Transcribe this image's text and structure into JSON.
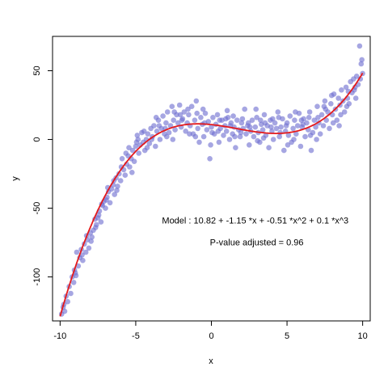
{
  "chart_data": {
    "type": "scatter",
    "title": "",
    "xlabel": "x",
    "ylabel": "y",
    "xlim": [
      -10.5,
      10.5
    ],
    "ylim": [
      -132,
      75
    ],
    "x_ticks": [
      {
        "value": -10,
        "label": "-10"
      },
      {
        "value": -5,
        "label": "-5"
      },
      {
        "value": 0,
        "label": "0"
      },
      {
        "value": 5,
        "label": "5"
      },
      {
        "value": 10,
        "label": "10"
      }
    ],
    "y_ticks": [
      {
        "value": -100,
        "label": "-100"
      },
      {
        "value": -50,
        "label": "-50"
      },
      {
        "value": 0,
        "label": "0"
      },
      {
        "value": 50,
        "label": "50"
      }
    ],
    "grid": false,
    "legend": "none",
    "point_color": "#7070d0",
    "curve_color": "#e41a1c",
    "fit": {
      "coefficients": [
        10.82,
        -1.15,
        -0.51,
        0.1
      ],
      "x_range": [
        -10,
        10
      ]
    },
    "annotations": [
      {
        "text": "Model :  10.82  +  -1.15 *x + -0.51 *x^2 + 0.1 *x^3",
        "x": 2.9,
        "y": -61
      },
      {
        "text": "P-value adjusted =  0.96",
        "x": 3.0,
        "y": -77
      }
    ],
    "points": [
      [
        -9.9,
        -127
      ],
      [
        -9.8,
        -122
      ],
      [
        -9.7,
        -125
      ],
      [
        -9.6,
        -114
      ],
      [
        -9.5,
        -118
      ],
      [
        -9.4,
        -107
      ],
      [
        -9.3,
        -112
      ],
      [
        -9.2,
        -100
      ],
      [
        -9.1,
        -104
      ],
      [
        -9.0,
        -97
      ],
      [
        -8.9,
        -82
      ],
      [
        -8.8,
        -92
      ],
      [
        -8.7,
        -86
      ],
      [
        -8.6,
        -80
      ],
      [
        -8.5,
        -88
      ],
      [
        -8.4,
        -76
      ],
      [
        -8.3,
        -82
      ],
      [
        -8.2,
        -73
      ],
      [
        -8.1,
        -79
      ],
      [
        -8.0,
        -68
      ],
      [
        -7.9,
        -71
      ],
      [
        -7.8,
        -66
      ],
      [
        -7.7,
        -58
      ],
      [
        -7.6,
        -62
      ],
      [
        -7.5,
        -57
      ],
      [
        -7.4,
        -52
      ],
      [
        -7.3,
        -60
      ],
      [
        -7.2,
        -48
      ],
      [
        -7.1,
        -45
      ],
      [
        -7.0,
        -50
      ],
      [
        -6.9,
        -42
      ],
      [
        -6.8,
        -38
      ],
      [
        -6.7,
        -46
      ],
      [
        -6.6,
        -36
      ],
      [
        -6.5,
        -33
      ],
      [
        -6.4,
        -40
      ],
      [
        -6.3,
        -28
      ],
      [
        -6.2,
        -34
      ],
      [
        -6.1,
        -25
      ],
      [
        -6.0,
        -30
      ],
      [
        -5.9,
        -14
      ],
      [
        -5.8,
        -22
      ],
      [
        -5.7,
        -26
      ],
      [
        -5.6,
        -18
      ],
      [
        -5.5,
        -12
      ],
      [
        -5.4,
        -20
      ],
      [
        -5.3,
        -14
      ],
      [
        -5.2,
        -8
      ],
      [
        -5.1,
        -16
      ],
      [
        -5.0,
        -5
      ],
      [
        -4.9,
        3
      ],
      [
        -4.8,
        -10
      ],
      [
        -4.7,
        -4
      ],
      [
        -4.6,
        5
      ],
      [
        -4.5,
        -2
      ],
      [
        -4.4,
        -8
      ],
      [
        -4.3,
        0
      ],
      [
        -4.2,
        4
      ],
      [
        -4.1,
        -3
      ],
      [
        -4.0,
        8
      ],
      [
        -3.9,
        2
      ],
      [
        -3.8,
        10
      ],
      [
        -3.7,
        -5
      ],
      [
        -3.6,
        6
      ],
      [
        -3.5,
        14
      ],
      [
        -3.4,
        0
      ],
      [
        -3.3,
        8
      ],
      [
        -3.2,
        17
      ],
      [
        -3.1,
        4
      ],
      [
        -3.0,
        12
      ],
      [
        -2.9,
        20
      ],
      [
        -2.8,
        5
      ],
      [
        -2.7,
        10
      ],
      [
        -2.6,
        24
      ],
      [
        -2.5,
        14
      ],
      [
        -2.4,
        7
      ],
      [
        -2.3,
        18
      ],
      [
        -2.2,
        12
      ],
      [
        -2.1,
        25
      ],
      [
        -2.0,
        9
      ],
      [
        -1.9,
        15
      ],
      [
        -1.8,
        20
      ],
      [
        -1.7,
        6
      ],
      [
        -1.6,
        12
      ],
      [
        -1.5,
        18
      ],
      [
        -1.4,
        10
      ],
      [
        -1.3,
        24
      ],
      [
        -1.2,
        4
      ],
      [
        -1.1,
        14
      ],
      [
        -1.0,
        28
      ],
      [
        -0.9,
        8
      ],
      [
        -0.8,
        -2
      ],
      [
        -0.7,
        16
      ],
      [
        -0.6,
        11
      ],
      [
        -0.5,
        2
      ],
      [
        -0.4,
        19
      ],
      [
        -0.3,
        7
      ],
      [
        -0.2,
        13
      ],
      [
        -0.1,
        -14
      ],
      [
        0.0,
        9
      ],
      [
        0.1,
        16
      ],
      [
        0.2,
        4
      ],
      [
        0.3,
        11
      ],
      [
        0.4,
        18
      ],
      [
        0.5,
        -2
      ],
      [
        0.6,
        8
      ],
      [
        0.7,
        14
      ],
      [
        0.8,
        3
      ],
      [
        0.9,
        10
      ],
      [
        1.0,
        6
      ],
      [
        1.1,
        16
      ],
      [
        1.2,
        0
      ],
      [
        1.3,
        12
      ],
      [
        1.4,
        4
      ],
      [
        1.5,
        9
      ],
      [
        1.6,
        -6
      ],
      [
        1.7,
        14
      ],
      [
        1.8,
        7
      ],
      [
        1.9,
        2
      ],
      [
        2.0,
        12
      ],
      [
        2.1,
        8
      ],
      [
        2.2,
        22
      ],
      [
        2.3,
        4
      ],
      [
        2.4,
        10
      ],
      [
        2.5,
        -4
      ],
      [
        2.6,
        6
      ],
      [
        2.7,
        14
      ],
      [
        2.8,
        2
      ],
      [
        2.9,
        9
      ],
      [
        3.0,
        16
      ],
      [
        3.1,
        5
      ],
      [
        3.2,
        -2
      ],
      [
        3.3,
        11
      ],
      [
        3.4,
        7
      ],
      [
        3.5,
        18
      ],
      [
        3.6,
        3
      ],
      [
        3.7,
        10
      ],
      [
        3.8,
        -6
      ],
      [
        3.9,
        14
      ],
      [
        4.0,
        6
      ],
      [
        4.1,
        0
      ],
      [
        4.2,
        12
      ],
      [
        4.3,
        8
      ],
      [
        4.4,
        20
      ],
      [
        4.5,
        2
      ],
      [
        4.6,
        9
      ],
      [
        4.7,
        15
      ],
      [
        4.8,
        -8
      ],
      [
        4.9,
        6
      ],
      [
        5.0,
        12
      ],
      [
        5.1,
        3
      ],
      [
        5.2,
        17
      ],
      [
        5.3,
        -2
      ],
      [
        5.4,
        8
      ],
      [
        5.5,
        14
      ],
      [
        5.6,
        4
      ],
      [
        5.7,
        10
      ],
      [
        5.8,
        19
      ],
      [
        5.9,
        -5
      ],
      [
        6.0,
        9
      ],
      [
        6.1,
        15
      ],
      [
        6.2,
        2
      ],
      [
        6.3,
        12
      ],
      [
        6.4,
        7
      ],
      [
        6.5,
        20
      ],
      [
        6.6,
        -8
      ],
      [
        6.7,
        5
      ],
      [
        6.8,
        14
      ],
      [
        6.9,
        9
      ],
      [
        7.0,
        24
      ],
      [
        7.1,
        12
      ],
      [
        7.2,
        4
      ],
      [
        7.3,
        18
      ],
      [
        7.4,
        10
      ],
      [
        7.5,
        28
      ],
      [
        7.6,
        14
      ],
      [
        7.7,
        20
      ],
      [
        7.8,
        8
      ],
      [
        7.9,
        26
      ],
      [
        8.0,
        18
      ],
      [
        8.1,
        33
      ],
      [
        8.2,
        22
      ],
      [
        8.3,
        14
      ],
      [
        8.4,
        30
      ],
      [
        8.5,
        25
      ],
      [
        8.6,
        36
      ],
      [
        8.7,
        28
      ],
      [
        8.8,
        20
      ],
      [
        8.9,
        38
      ],
      [
        9.0,
        30
      ],
      [
        9.1,
        26
      ],
      [
        9.2,
        42
      ],
      [
        9.3,
        34
      ],
      [
        9.4,
        44
      ],
      [
        9.5,
        38
      ],
      [
        9.6,
        46
      ],
      [
        9.7,
        40
      ],
      [
        9.8,
        68
      ],
      [
        9.9,
        55
      ],
      [
        10.0,
        48
      ],
      [
        -9.75,
        -120
      ],
      [
        -9.05,
        -95
      ],
      [
        -8.55,
        -84
      ],
      [
        -7.95,
        -74
      ],
      [
        -7.45,
        -55
      ],
      [
        -6.95,
        -44
      ],
      [
        -6.45,
        -30
      ],
      [
        -5.95,
        -20
      ],
      [
        -5.45,
        -6
      ],
      [
        -4.95,
        -2
      ],
      [
        -4.45,
        6
      ],
      [
        -3.95,
        0
      ],
      [
        -3.45,
        10
      ],
      [
        -2.95,
        2
      ],
      [
        -2.45,
        20
      ],
      [
        -1.95,
        14
      ],
      [
        -1.45,
        4
      ],
      [
        -0.95,
        19
      ],
      [
        -0.45,
        12
      ],
      [
        0.05,
        5
      ],
      [
        0.55,
        14
      ],
      [
        1.05,
        21
      ],
      [
        1.55,
        2
      ],
      [
        2.05,
        15
      ],
      [
        2.55,
        9
      ],
      [
        3.05,
        -1
      ],
      [
        3.55,
        12
      ],
      [
        4.05,
        15
      ],
      [
        4.55,
        5
      ],
      [
        5.05,
        -4
      ],
      [
        5.55,
        20
      ],
      [
        6.05,
        11
      ],
      [
        6.55,
        3
      ],
      [
        7.05,
        16
      ],
      [
        7.55,
        22
      ],
      [
        8.05,
        12
      ],
      [
        8.55,
        18
      ],
      [
        9.05,
        35
      ],
      [
        9.55,
        30
      ],
      [
        9.95,
        58
      ],
      [
        -8.95,
        -99
      ],
      [
        -8.25,
        -70
      ],
      [
        -7.65,
        -64
      ],
      [
        -6.85,
        -35
      ],
      [
        -6.25,
        -37
      ],
      [
        -5.65,
        -10
      ],
      [
        -4.85,
        0
      ],
      [
        -4.25,
        -6
      ],
      [
        -3.65,
        16
      ],
      [
        -3.05,
        8
      ],
      [
        -2.55,
        0
      ],
      [
        -2.05,
        18
      ],
      [
        -1.55,
        22
      ],
      [
        -1.05,
        2
      ],
      [
        -0.55,
        22
      ],
      [
        -0.05,
        -4
      ],
      [
        0.45,
        6
      ],
      [
        0.95,
        15
      ],
      [
        1.45,
        17
      ],
      [
        1.95,
        5
      ],
      [
        2.45,
        12
      ],
      [
        2.95,
        22
      ],
      [
        3.45,
        1
      ],
      [
        3.95,
        9
      ],
      [
        4.45,
        16
      ],
      [
        4.95,
        10
      ],
      [
        5.45,
        0
      ],
      [
        5.95,
        14
      ],
      [
        6.45,
        16
      ],
      [
        6.95,
        0
      ],
      [
        7.45,
        24
      ],
      [
        7.95,
        32
      ],
      [
        8.45,
        10
      ],
      [
        8.95,
        24
      ],
      [
        9.45,
        36
      ],
      [
        9.85,
        44
      ],
      [
        -7.25,
        -47
      ],
      [
        -5.25,
        -24
      ],
      [
        1.25,
        10
      ],
      [
        3.25,
        14
      ]
    ]
  }
}
